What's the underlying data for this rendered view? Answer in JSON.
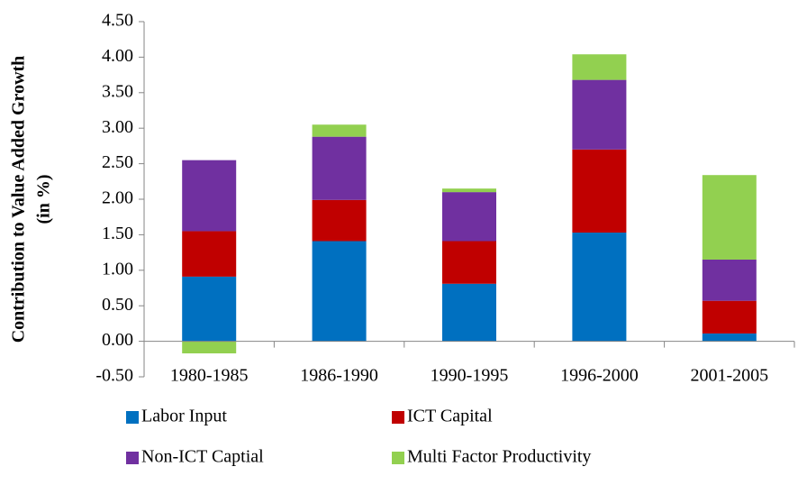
{
  "chart_data": {
    "type": "stacked_bar",
    "y_label": [
      "Contribution to Value Added Growth",
      "(in %)"
    ],
    "categories": [
      "1980-1985",
      "1986-1990",
      "1990-1995",
      "1996-2000",
      "2001-2005"
    ],
    "series": [
      {
        "name": "Labor Input",
        "color": "#0070c0",
        "values": [
          0.91,
          1.41,
          0.81,
          1.53,
          0.11
        ]
      },
      {
        "name": "ICT Capital",
        "color": "#c00000",
        "values": [
          0.64,
          0.58,
          0.6,
          1.17,
          0.46
        ]
      },
      {
        "name": "Non-ICT Captial",
        "color": "#7030a0",
        "values": [
          1.0,
          0.89,
          0.69,
          0.98,
          0.58
        ]
      },
      {
        "name": "Multi Factor Productivity",
        "color": "#92d050",
        "values": [
          -0.17,
          0.17,
          0.05,
          0.36,
          1.19
        ]
      }
    ],
    "ylim": [
      -0.5,
      4.5
    ],
    "yticks": [
      {
        "value": -0.5,
        "label": "-0.50"
      },
      {
        "value": 0,
        "label": "0.00"
      },
      {
        "value": 0.5,
        "label": "0.50"
      },
      {
        "value": 1,
        "label": "1.00"
      },
      {
        "value": 1.5,
        "label": "1.50"
      },
      {
        "value": 2,
        "label": "2.00"
      },
      {
        "value": 2.5,
        "label": "2.50"
      },
      {
        "value": 3,
        "label": "3.00"
      },
      {
        "value": 3.5,
        "label": "3.50"
      },
      {
        "value": 4,
        "label": "4.00"
      },
      {
        "value": 4.5,
        "label": "4.50"
      }
    ],
    "grid": false,
    "legend": "bottom"
  }
}
